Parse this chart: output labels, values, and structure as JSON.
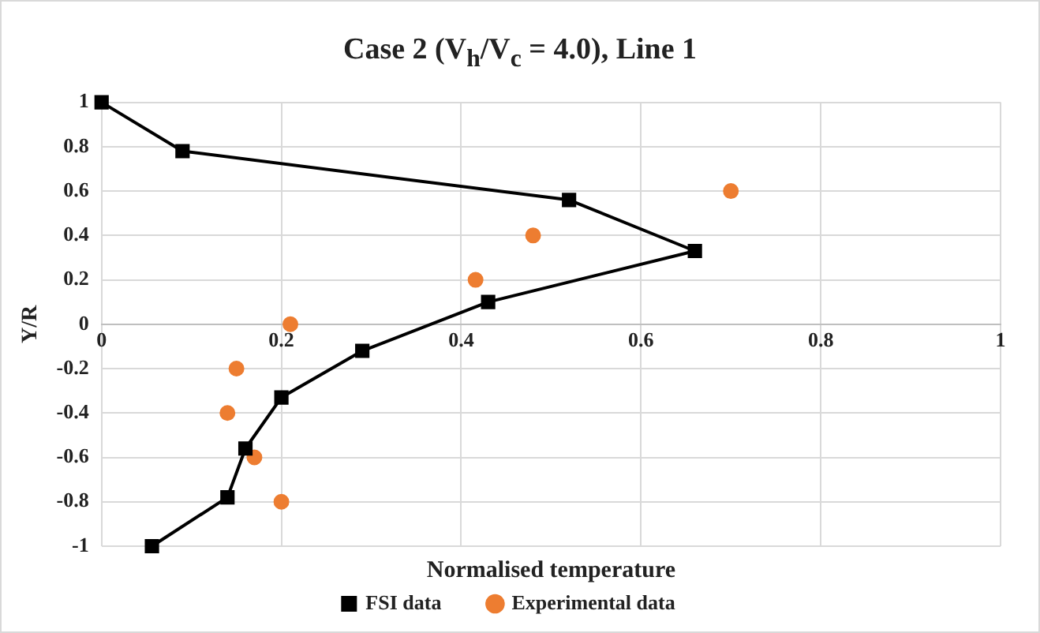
{
  "chart_data": {
    "type": "scatter",
    "title": "Case 2 (V$_{h}$/V$_{c}$ = 4.0), Line 1",
    "xlabel": "Normalised temperature",
    "ylabel": "Y/R",
    "series": [
      {
        "name": "FSI data",
        "type": "line",
        "color": "#000000",
        "marker": "square",
        "x": [
          0,
          0.09,
          0.52,
          0.66,
          0.43,
          0.29,
          0.2,
          0.16,
          0.14,
          0.056
        ],
        "values": [
          1,
          0.78,
          0.56,
          0.33,
          0.1,
          -0.12,
          -0.33,
          -0.56,
          -0.78,
          -1
        ]
      },
      {
        "name": "Experimental data",
        "type": "scatter",
        "color": "#ed7d31",
        "marker": "circle",
        "x": [
          0.7,
          0.48,
          0.416,
          0.21,
          0.15,
          0.14,
          0.17,
          0.2
        ],
        "values": [
          0.6,
          0.4,
          0.2,
          0,
          -0.2,
          -0.4,
          -0.6,
          -0.8
        ]
      }
    ],
    "xlim": [
      0,
      1
    ],
    "xticks": [
      0,
      0.2,
      0.4,
      0.6,
      0.8,
      1
    ],
    "ylim": [
      -1,
      1
    ],
    "yticks": [
      -1,
      -0.8,
      -0.6,
      -0.4,
      -0.2,
      0,
      0.2,
      0.4,
      0.6,
      0.8,
      1
    ],
    "grid": true,
    "legend": "bottom"
  }
}
